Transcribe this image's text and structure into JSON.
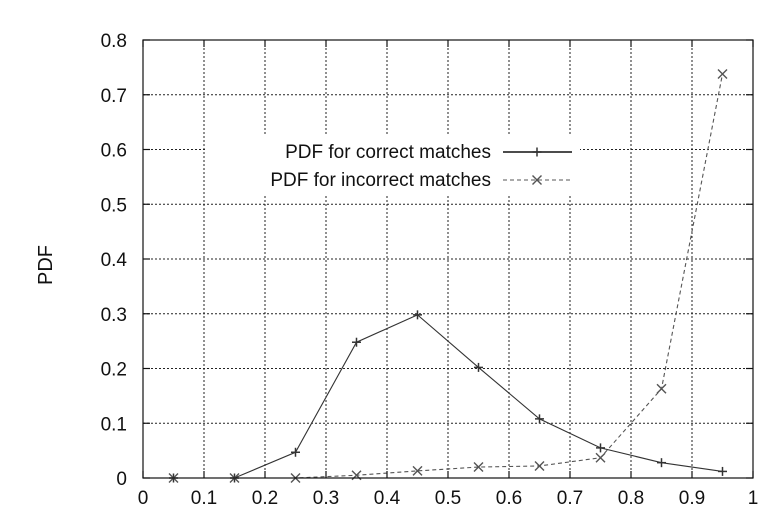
{
  "chart_data": {
    "type": "line",
    "title": "",
    "xlabel": "",
    "ylabel": "PDF",
    "xlim": [
      0,
      1
    ],
    "ylim": [
      0,
      0.8
    ],
    "x_ticks": [
      "0",
      "0.1",
      "0.2",
      "0.3",
      "0.4",
      "0.5",
      "0.6",
      "0.7",
      "0.8",
      "0.9",
      "1"
    ],
    "y_ticks": [
      "0",
      "0.1",
      "0.2",
      "0.3",
      "0.4",
      "0.5",
      "0.6",
      "0.7",
      "0.8"
    ],
    "grid": true,
    "legend_position": "upper-left",
    "x": [
      0.05,
      0.15,
      0.25,
      0.35,
      0.45,
      0.55,
      0.65,
      0.75,
      0.85,
      0.95
    ],
    "series": [
      {
        "name": "PDF for correct matches",
        "values": [
          0.0,
          0.0,
          0.047,
          0.248,
          0.298,
          0.202,
          0.108,
          0.055,
          0.028,
          0.012
        ],
        "marker": "plus",
        "line_style": "solid",
        "color": "#333333"
      },
      {
        "name": "PDF for incorrect matches",
        "values": [
          0.0,
          0.0,
          0.0,
          0.005,
          0.013,
          0.02,
          0.022,
          0.037,
          0.163,
          0.738
        ],
        "marker": "x",
        "line_style": "dashed",
        "color": "#555555"
      }
    ]
  }
}
